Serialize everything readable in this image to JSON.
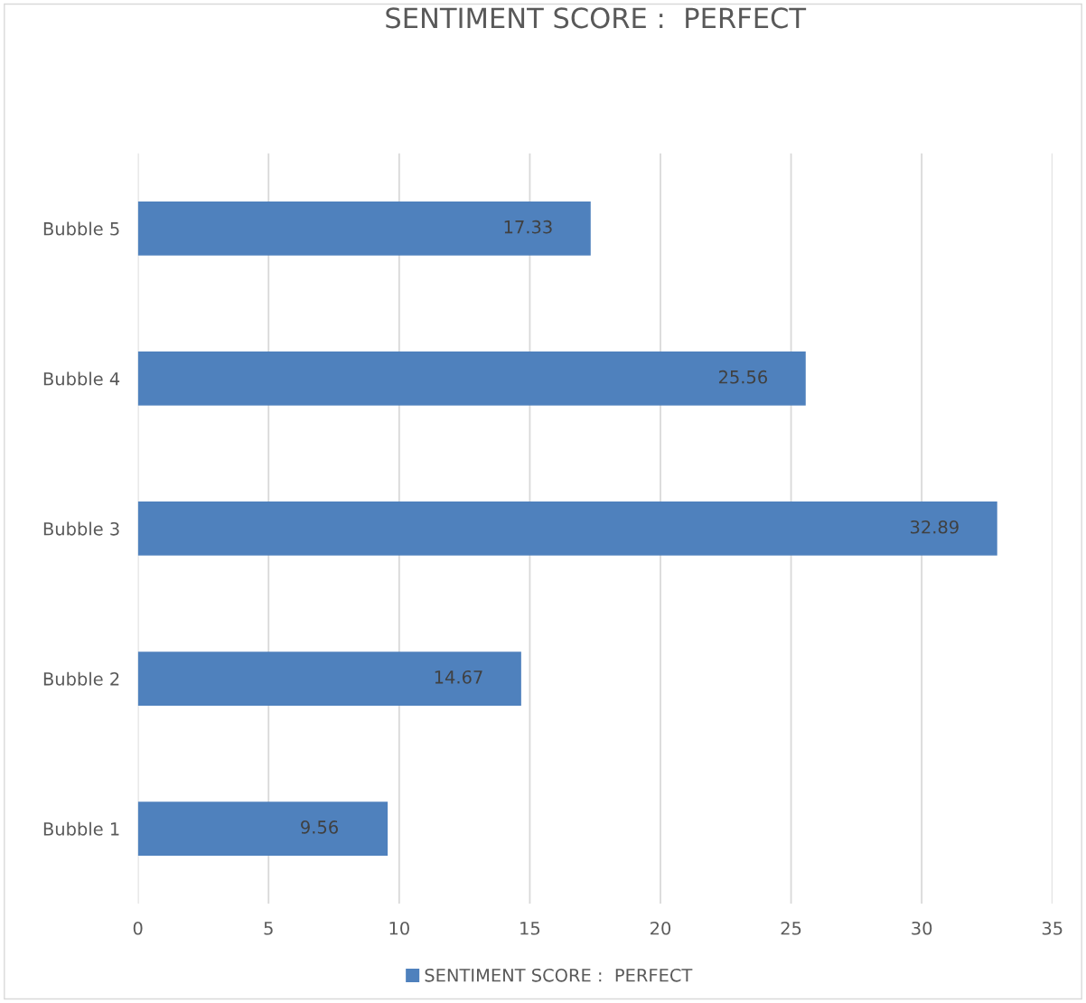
{
  "chart_data": {
    "type": "bar",
    "orientation": "horizontal",
    "title": "SENTIMENT SCORE :  PERFECT",
    "categories": [
      "Bubble 5",
      "Bubble 4",
      "Bubble 3",
      "Bubble 2",
      "Bubble 1"
    ],
    "series": [
      {
        "name": "SENTIMENT SCORE :  PERFECT",
        "color": "#4f81bd",
        "values": [
          17.33,
          25.56,
          32.89,
          14.67,
          9.56
        ]
      }
    ],
    "xlim": [
      0,
      35
    ],
    "xticks": [
      0,
      5,
      10,
      15,
      20,
      25,
      30,
      35
    ],
    "grid": "x",
    "legend": "bottom",
    "data_labels": true
  }
}
